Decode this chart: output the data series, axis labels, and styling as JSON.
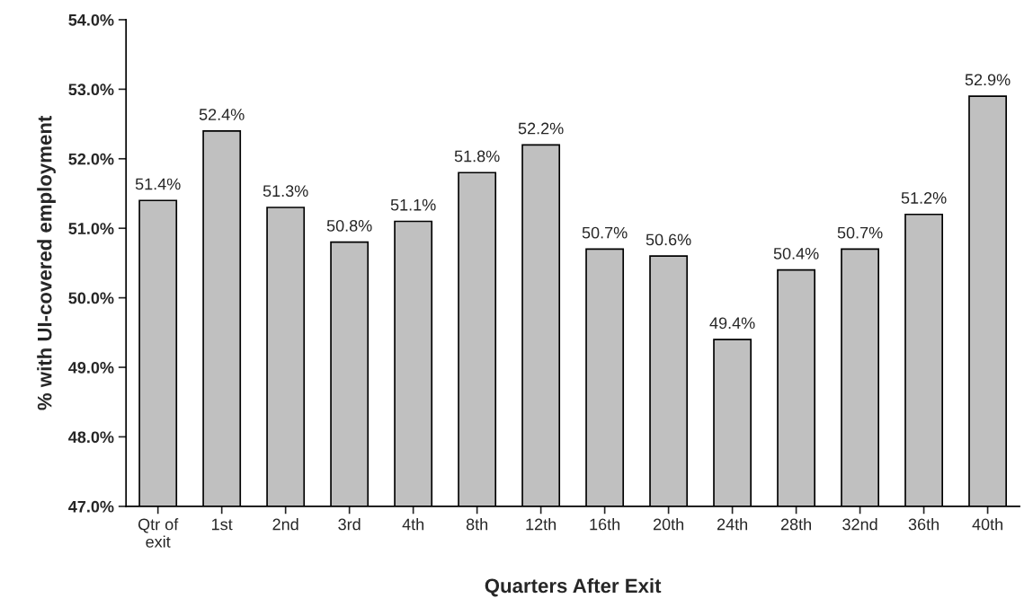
{
  "chart_data": {
    "type": "bar",
    "xlabel": "Quarters After Exit",
    "ylabel": "% with UI-covered employment",
    "categories": [
      "Qtr of\nexit",
      "1st",
      "2nd",
      "3rd",
      "4th",
      "8th",
      "12th",
      "16th",
      "20th",
      "24th",
      "28th",
      "32nd",
      "36th",
      "40th"
    ],
    "values": [
      51.4,
      52.4,
      51.3,
      50.8,
      51.1,
      51.8,
      52.2,
      50.7,
      50.6,
      49.4,
      50.4,
      50.7,
      51.2,
      52.9
    ],
    "value_labels": [
      "51.4%",
      "52.4%",
      "51.3%",
      "50.8%",
      "51.1%",
      "51.8%",
      "52.2%",
      "50.7%",
      "50.6%",
      "49.4%",
      "50.4%",
      "50.7%",
      "51.2%",
      "52.9%"
    ],
    "color": "#c0c0c0",
    "ylim": [
      47,
      54
    ],
    "yticks": [
      {
        "value": 47,
        "label": "47.0%"
      },
      {
        "value": 48,
        "label": "48.0%"
      },
      {
        "value": 49,
        "label": "49.0%"
      },
      {
        "value": 50,
        "label": "50.0%"
      },
      {
        "value": 51,
        "label": "51.0%"
      },
      {
        "value": 52,
        "label": "52.0%"
      },
      {
        "value": 53,
        "label": "53.0%"
      },
      {
        "value": 54,
        "label": "54.0%"
      }
    ],
    "grid": false
  }
}
